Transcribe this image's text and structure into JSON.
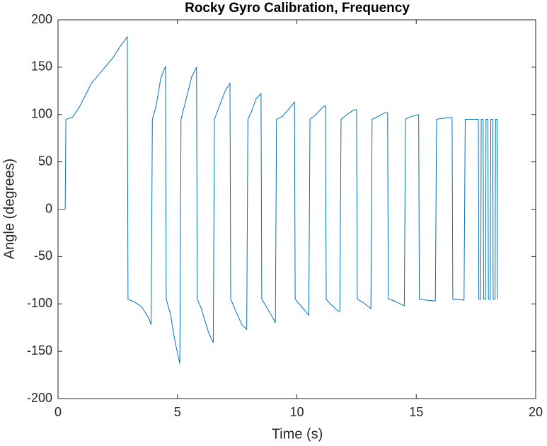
{
  "chart_data": {
    "type": "line",
    "title": "Rocky Gyro Calibration, Frequency",
    "x_label": "Time (s)",
    "y_label": "Angle (degrees)",
    "x": [
      0,
      0.3,
      0.33,
      0.6,
      0.9,
      1.4,
      1.9,
      2.3,
      2.6,
      2.9,
      2.93,
      3.2,
      3.5,
      3.8,
      3.9,
      3.95,
      4.1,
      4.3,
      4.5,
      4.53,
      4.7,
      4.9,
      5.1,
      5.15,
      5.3,
      5.6,
      5.8,
      5.83,
      6.0,
      6.3,
      6.5,
      6.55,
      6.7,
      7.0,
      7.2,
      7.23,
      7.4,
      7.7,
      7.9,
      7.95,
      8.1,
      8.3,
      8.5,
      8.53,
      8.7,
      9.0,
      9.1,
      9.15,
      9.4,
      9.7,
      9.9,
      9.93,
      10.1,
      10.4,
      10.5,
      10.55,
      10.8,
      11.1,
      11.2,
      11.23,
      11.4,
      11.7,
      11.8,
      11.85,
      12.1,
      12.4,
      12.5,
      12.53,
      12.8,
      13.1,
      13.15,
      13.4,
      13.7,
      13.8,
      13.83,
      14.1,
      14.4,
      14.5,
      14.55,
      14.8,
      15.1,
      15.13,
      15.4,
      15.8,
      15.85,
      16.1,
      16.5,
      16.53,
      17.0,
      17.05,
      17.6,
      17.62,
      17.7,
      17.72,
      17.8,
      17.82,
      17.9,
      17.92,
      18.0,
      18.02,
      18.1,
      18.12,
      18.2,
      18.22,
      18.3,
      18.32,
      18.38,
      18.4
    ],
    "series": [
      {
        "color": "#0072bd",
        "values": [
          0,
          0,
          95,
          97,
          108,
          133,
          148,
          160,
          172,
          182,
          -95,
          -98,
          -103,
          -115,
          -122,
          95,
          108,
          138,
          151,
          -95,
          -110,
          -140,
          -163,
          95,
          110,
          140,
          150,
          -95,
          -105,
          -130,
          -141,
          95,
          105,
          125,
          133,
          -95,
          -105,
          -122,
          -127,
          95,
          103,
          117,
          122,
          -95,
          -102,
          -115,
          -120,
          95,
          98,
          107,
          113,
          -95,
          -100,
          -109,
          -112,
          95,
          100,
          108,
          109,
          -95,
          -100,
          -107,
          -108,
          95,
          100,
          105,
          105,
          -95,
          -99,
          -105,
          95,
          98,
          102,
          102,
          -95,
          -97,
          -101,
          -102,
          95,
          98,
          100,
          -95,
          -96,
          -97,
          95,
          96,
          97,
          -95,
          -96,
          95,
          95,
          -95,
          -95,
          95,
          95,
          -95,
          -95,
          95,
          95,
          -95,
          -95,
          95,
          95,
          -95,
          -95,
          95,
          95,
          -95
        ]
      }
    ],
    "xlim": [
      0,
      20
    ],
    "ylim": [
      -200,
      200
    ],
    "xticks": [
      0,
      5,
      10,
      15,
      20
    ],
    "yticks": [
      -200,
      -150,
      -100,
      -50,
      0,
      50,
      100,
      150,
      200
    ]
  }
}
